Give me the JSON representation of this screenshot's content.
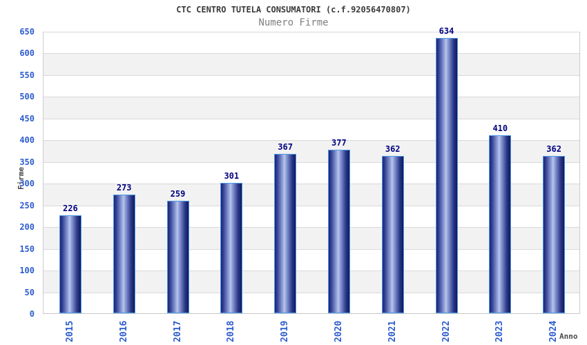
{
  "header": {
    "title": "CTC CENTRO TUTELA CONSUMATORI (c.f.92056470807)",
    "subtitle": "Numero Firme"
  },
  "axes": {
    "y_title": "Firme",
    "x_title": "Anno"
  },
  "chart_data": {
    "type": "bar",
    "title": "CTC CENTRO TUTELA CONSUMATORI (c.f.92056470807)",
    "subtitle": "Numero Firme",
    "xlabel": "Anno",
    "ylabel": "Firme",
    "categories": [
      "2015",
      "2016",
      "2017",
      "2018",
      "2019",
      "2020",
      "2021",
      "2022",
      "2023",
      "2024"
    ],
    "values": [
      226,
      273,
      259,
      301,
      367,
      377,
      362,
      634,
      410,
      362
    ],
    "ylim": [
      0,
      650
    ],
    "ytick_step": 50,
    "grid": true,
    "alternating_bands": true,
    "legend": "none",
    "value_labels_shown": true,
    "colors": {
      "tick_label": "#2d5ccd",
      "value_label": "#000080",
      "gridline": "#d9d9d9",
      "band": "#f2f2f2",
      "axis_line": "#c6c6c6",
      "plot_border": "#cccccc",
      "bar_border": "#4d9be8",
      "bar_gradient": [
        "#1c2475",
        "#354395",
        "#92a3da",
        "#bac5ec",
        "#92a3da",
        "#2c3a8c",
        "#111858"
      ],
      "title_color": "#3a3a3a",
      "subtitle_color": "#7f7f7f",
      "axis_title_color": "#4a4a4a"
    }
  }
}
